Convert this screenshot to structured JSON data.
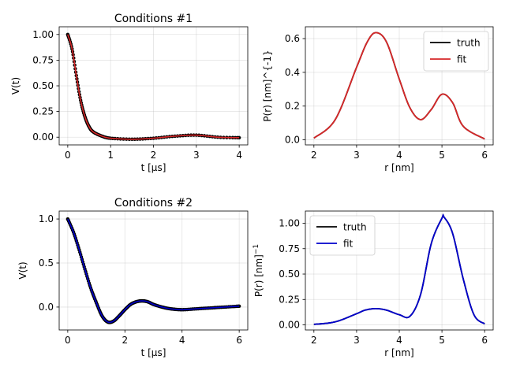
{
  "chart_data": [
    {
      "type": "scatter",
      "title": "Conditions #1",
      "xlabel": "t [μs]",
      "ylabel": "V(t)",
      "xlim": [
        -0.2,
        4.2
      ],
      "ylim": [
        -0.075,
        1.075
      ],
      "xticks": [
        "0",
        "1",
        "2",
        "3",
        "4"
      ],
      "yticks": [
        "0.00",
        "0.25",
        "0.50",
        "0.75",
        "1.00"
      ],
      "grid": true,
      "colors": {
        "points": "#000000",
        "fit": "#d62728"
      },
      "series": [
        {
          "role": "data-points",
          "x": [
            0,
            0.1,
            0.2,
            0.3,
            0.4,
            0.5,
            0.6,
            0.8,
            1.0,
            1.5,
            2.0,
            2.5,
            3.0,
            3.5,
            4.0
          ],
          "y": [
            1.0,
            0.86,
            0.6,
            0.36,
            0.2,
            0.1,
            0.05,
            0.01,
            -0.01,
            -0.02,
            -0.01,
            0.01,
            0.02,
            0.0,
            -0.005
          ]
        },
        {
          "role": "fit-line",
          "x": [
            0,
            0.1,
            0.2,
            0.3,
            0.4,
            0.5,
            0.6,
            0.8,
            1.0,
            1.5,
            2.0,
            2.5,
            3.0,
            3.5,
            4.0
          ],
          "y": [
            1.0,
            0.86,
            0.6,
            0.36,
            0.2,
            0.1,
            0.05,
            0.01,
            -0.01,
            -0.02,
            -0.01,
            0.01,
            0.02,
            0.0,
            -0.005
          ]
        }
      ]
    },
    {
      "type": "line",
      "xlabel": "r [nm]",
      "ylabel": "P(r) [nm]^{-1}",
      "xlim": [
        1.8,
        6.2
      ],
      "ylim": [
        -0.03,
        0.67
      ],
      "xticks": [
        "2",
        "3",
        "4",
        "5",
        "6"
      ],
      "yticks": [
        "0.0",
        "0.2",
        "0.4",
        "0.6"
      ],
      "grid": true,
      "legend_position": "top-right",
      "series": [
        {
          "name": "truth",
          "color": "#000000",
          "x": [
            2.0,
            2.5,
            3.0,
            3.25,
            3.45,
            3.7,
            4.0,
            4.25,
            4.5,
            4.75,
            5.0,
            5.25,
            5.5,
            6.0
          ],
          "y": [
            0.01,
            0.12,
            0.43,
            0.58,
            0.635,
            0.58,
            0.36,
            0.19,
            0.12,
            0.18,
            0.27,
            0.22,
            0.08,
            0.005
          ]
        },
        {
          "name": "fit",
          "color": "#d62728",
          "x": [
            2.0,
            2.5,
            3.0,
            3.25,
            3.45,
            3.7,
            4.0,
            4.25,
            4.5,
            4.75,
            5.0,
            5.25,
            5.5,
            6.0
          ],
          "y": [
            0.01,
            0.12,
            0.43,
            0.58,
            0.635,
            0.58,
            0.36,
            0.19,
            0.12,
            0.18,
            0.27,
            0.22,
            0.08,
            0.005
          ]
        }
      ]
    },
    {
      "type": "scatter",
      "title": "Conditions #2",
      "xlabel": "t [μs]",
      "ylabel": "V(t)",
      "xlim": [
        -0.3,
        6.3
      ],
      "ylim": [
        -0.26,
        1.09
      ],
      "xticks": [
        "0",
        "2",
        "4",
        "6"
      ],
      "yticks": [
        "0.0",
        "0.5",
        "1.0"
      ],
      "grid": true,
      "colors": {
        "points": "#000000",
        "fit": "#0000cc"
      },
      "series": [
        {
          "role": "data-points",
          "x": [
            0,
            0.2,
            0.4,
            0.6,
            0.8,
            1.0,
            1.2,
            1.4,
            1.6,
            1.8,
            2.0,
            2.2,
            2.4,
            2.6,
            2.8,
            3.0,
            3.3,
            3.6,
            4.0,
            4.5,
            5.0,
            5.5,
            6.0
          ],
          "y": [
            1.0,
            0.85,
            0.65,
            0.43,
            0.22,
            0.05,
            -0.1,
            -0.17,
            -0.16,
            -0.1,
            -0.03,
            0.03,
            0.06,
            0.07,
            0.06,
            0.03,
            0.0,
            -0.02,
            -0.03,
            -0.02,
            -0.01,
            0.0,
            0.01
          ]
        },
        {
          "role": "fit-line",
          "x": [
            0,
            0.2,
            0.4,
            0.6,
            0.8,
            1.0,
            1.2,
            1.4,
            1.6,
            1.8,
            2.0,
            2.2,
            2.4,
            2.6,
            2.8,
            3.0,
            3.3,
            3.6,
            4.0,
            4.5,
            5.0,
            5.5,
            6.0
          ],
          "y": [
            1.0,
            0.85,
            0.65,
            0.43,
            0.22,
            0.05,
            -0.1,
            -0.17,
            -0.16,
            -0.1,
            -0.03,
            0.03,
            0.06,
            0.07,
            0.06,
            0.03,
            0.0,
            -0.02,
            -0.03,
            -0.02,
            -0.01,
            0.0,
            0.01
          ]
        }
      ]
    },
    {
      "type": "line",
      "xlabel": "r [nm]",
      "ylabel": "P(r) [nm]",
      "ylabel_superscript": "−1",
      "xlim": [
        1.8,
        6.2
      ],
      "ylim": [
        -0.05,
        1.12
      ],
      "xticks": [
        "2",
        "3",
        "4",
        "5",
        "6"
      ],
      "yticks": [
        "0.00",
        "0.25",
        "0.50",
        "0.75",
        "1.00"
      ],
      "grid": true,
      "legend_position": "top-left",
      "series": [
        {
          "name": "truth",
          "color": "#000000",
          "x": [
            2.0,
            2.5,
            3.0,
            3.2,
            3.45,
            3.7,
            4.0,
            4.25,
            4.5,
            4.75,
            5.0,
            5.05,
            5.25,
            5.5,
            5.75,
            6.0
          ],
          "y": [
            0.005,
            0.03,
            0.11,
            0.145,
            0.16,
            0.145,
            0.1,
            0.085,
            0.3,
            0.8,
            1.05,
            1.06,
            0.9,
            0.45,
            0.1,
            0.01
          ]
        },
        {
          "name": "fit",
          "color": "#0000cc",
          "x": [
            2.0,
            2.5,
            3.0,
            3.2,
            3.45,
            3.7,
            4.0,
            4.25,
            4.5,
            4.75,
            5.0,
            5.05,
            5.25,
            5.5,
            5.75,
            6.0
          ],
          "y": [
            0.005,
            0.03,
            0.11,
            0.145,
            0.16,
            0.145,
            0.1,
            0.085,
            0.3,
            0.8,
            1.05,
            1.06,
            0.9,
            0.45,
            0.1,
            0.01
          ]
        }
      ]
    }
  ]
}
